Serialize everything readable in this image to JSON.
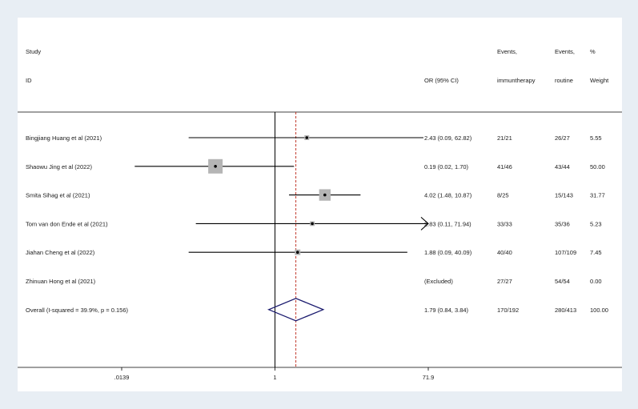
{
  "chart_data": {
    "type": "forest",
    "header": {
      "study": "Study",
      "id": "ID",
      "or_ci": "OR (95% CI)",
      "events_imm_line1": "Events,",
      "events_imm_line2": "immuntherapy",
      "events_routine_line1": "Events,",
      "events_routine_line2": "routine",
      "weight_line1": "%",
      "weight_line2": "Weight"
    },
    "x_scale": "log",
    "x_range": [
      0.0139,
      71.9
    ],
    "x_ticks": [
      {
        "value": 0.0139,
        "label": ".0139"
      },
      {
        "value": 1,
        "label": "1"
      },
      {
        "value": 71.9,
        "label": "71.9"
      }
    ],
    "null_line": 1,
    "overall_estimate": 1.79,
    "studies": [
      {
        "label": "Bingjiang Huang et al (2021)",
        "or": 2.43,
        "lo": 0.09,
        "hi": 62.82,
        "or_text": "2.43 (0.09, 62.82)",
        "events_imm": "21/21",
        "events_routine": "26/27",
        "weight": 5.55,
        "weight_text": "5.55",
        "arrow": false
      },
      {
        "label": "Shaowu Jing et al (2022)",
        "or": 0.19,
        "lo": 0.02,
        "hi": 1.7,
        "or_text": "0.19 (0.02, 1.70)",
        "events_imm": "41/46",
        "events_routine": "43/44",
        "weight": 50.0,
        "weight_text": "50.00",
        "arrow": false
      },
      {
        "label": "Smita Sihag et al (2021)",
        "or": 4.02,
        "lo": 1.48,
        "hi": 10.87,
        "or_text": "4.02 (1.48, 10.87)",
        "events_imm": "8/25",
        "events_routine": "15/143",
        "weight": 31.77,
        "weight_text": "31.77",
        "arrow": false
      },
      {
        "label": "Tom van don Ende et al (2021)",
        "or": 2.83,
        "lo": 0.11,
        "hi": 71.94,
        "or_text": "2.83 (0.11, 71.94)",
        "events_imm": "33/33",
        "events_routine": "35/36",
        "weight": 5.23,
        "weight_text": "5.23",
        "arrow": true
      },
      {
        "label": "Jiahan Cheng et al (2022)",
        "or": 1.88,
        "lo": 0.09,
        "hi": 40.09,
        "or_text": "1.88 (0.09, 40.09)",
        "events_imm": "40/40",
        "events_routine": "107/109",
        "weight": 7.45,
        "weight_text": "7.45",
        "arrow": false
      },
      {
        "label": "Zhinuan Hong et al (2021)",
        "or": null,
        "lo": null,
        "hi": null,
        "or_text": "(Excluded)",
        "events_imm": "27/27",
        "events_routine": "54/54",
        "weight": 0.0,
        "weight_text": "0.00",
        "arrow": false
      }
    ],
    "overall": {
      "label": "Overall  (I-squared = 39.9%, p = 0.156)",
      "or": 1.79,
      "lo": 0.84,
      "hi": 3.84,
      "or_text": "1.79 (0.84, 3.84)",
      "events_imm": "170/192",
      "events_routine": "280/413",
      "weight_text": "100.00"
    },
    "colors": {
      "panel": "#ffffff",
      "background": "#e8eef4",
      "box": "#b5b5b5",
      "diamond": "#1a1a6e",
      "dashed": "#c0392b",
      "line": "#000000"
    }
  }
}
